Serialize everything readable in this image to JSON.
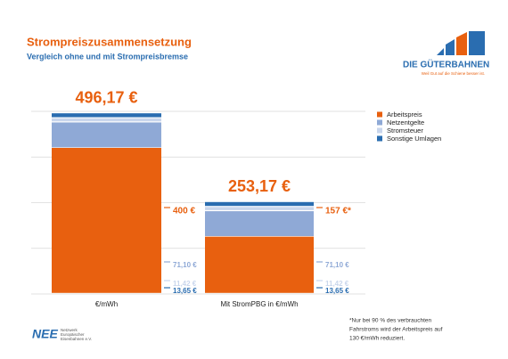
{
  "chart_data": {
    "type": "stacked-bar",
    "title": "Strompreiszusammensetzung",
    "subtitle": "Vergleich ohne und mit Strompreisbremse",
    "categories": [
      "€/mWh",
      "Mit StromPBG in €/mWh"
    ],
    "series": [
      {
        "name": "Arbeitspreis",
        "color": "#e8600f",
        "values": [
          400,
          157
        ],
        "value_labels": [
          "400 €",
          "157 €*"
        ]
      },
      {
        "name": "Netzentgelte",
        "color": "#8fa9d6",
        "values": [
          71.1,
          71.1
        ],
        "value_labels": [
          "71,10 €",
          "71,10 €"
        ]
      },
      {
        "name": "Stromsteuer",
        "color": "#c9d6ec",
        "values": [
          11.42,
          11.42
        ],
        "value_labels": [
          "11,42 €",
          "11,42 €"
        ]
      },
      {
        "name": "Sonstige Umlagen",
        "color": "#2a6db0",
        "values": [
          13.65,
          13.65
        ],
        "value_labels": [
          "13,65 €",
          "13,65 €"
        ]
      }
    ],
    "totals": [
      496.17,
      253.17
    ],
    "total_labels": [
      "496,17 €",
      "253,17 €"
    ],
    "ylim": [
      0,
      500
    ],
    "grid": true
  },
  "logo": {
    "name": "DIE GÜTERBAHNEN",
    "tagline": "Weil Gut auf die Schiene besser ist."
  },
  "footer": {
    "org_short": "NEE",
    "org_lines": [
      "Netzwerk",
      "Europäischer",
      "Eisenbahnen e.V."
    ]
  },
  "footnote": [
    "*Nur bei 90 % des verbrauchten",
    "Fahrstroms wird der Arbeitspreis auf",
    "130 €/mWh reduziert."
  ]
}
